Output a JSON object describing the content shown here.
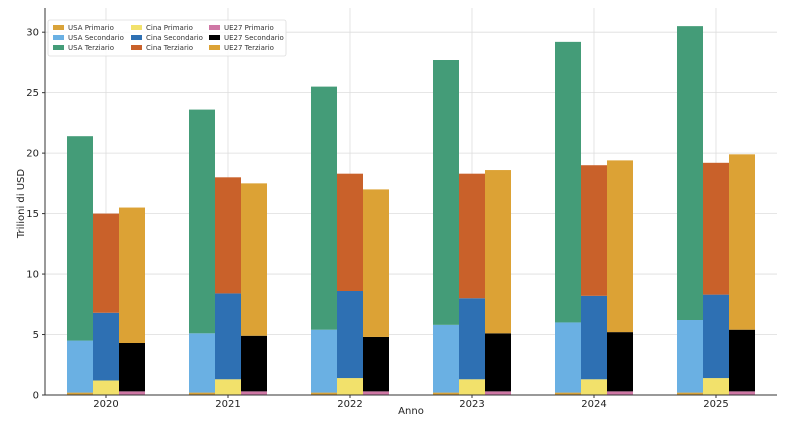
{
  "chart_data": {
    "type": "bar",
    "stacked": true,
    "grouped": true,
    "title": "",
    "xlabel": "Anno",
    "ylabel": "Trilioni di USD",
    "ylim": [
      0,
      32
    ],
    "yticks": [
      0,
      5,
      10,
      15,
      20,
      25,
      30
    ],
    "grid": true,
    "legend_position": "top-left",
    "categories": [
      "2020",
      "2021",
      "2022",
      "2023",
      "2024",
      "2025"
    ],
    "groups": [
      {
        "name": "USA",
        "series": [
          {
            "name": "USA Primario",
            "color": "#d9a33a",
            "values": [
              0.2,
              0.2,
              0.2,
              0.2,
              0.2,
              0.2
            ]
          },
          {
            "name": "USA Secondario",
            "color": "#6ab0e3",
            "values": [
              4.3,
              4.9,
              5.2,
              5.6,
              5.8,
              6.0
            ]
          },
          {
            "name": "USA Terziario",
            "color": "#449c78",
            "values": [
              16.9,
              18.5,
              20.1,
              21.9,
              23.2,
              24.3
            ]
          }
        ]
      },
      {
        "name": "Cina",
        "series": [
          {
            "name": "Cina Primario",
            "color": "#f2e16b",
            "values": [
              1.2,
              1.3,
              1.4,
              1.3,
              1.3,
              1.4
            ]
          },
          {
            "name": "Cina Secondario",
            "color": "#2e70b3",
            "values": [
              5.6,
              7.1,
              7.2,
              6.7,
              6.9,
              6.9
            ]
          },
          {
            "name": "Cina Terziario",
            "color": "#c9612a",
            "values": [
              8.2,
              9.6,
              9.7,
              10.3,
              10.8,
              10.9
            ]
          }
        ]
      },
      {
        "name": "UE27",
        "series": [
          {
            "name": "UE27 Primario",
            "color": "#cf77a5",
            "values": [
              0.3,
              0.3,
              0.3,
              0.3,
              0.3,
              0.3
            ]
          },
          {
            "name": "UE27 Secondario",
            "color": "#000000",
            "values": [
              4.0,
              4.6,
              4.5,
              4.8,
              4.9,
              5.1
            ]
          },
          {
            "name": "UE27 Terziario",
            "color": "#dca235",
            "values": [
              11.2,
              12.6,
              12.2,
              13.5,
              14.2,
              14.5
            ]
          }
        ]
      }
    ],
    "legend": [
      [
        "USA Primario",
        "Cina Primario",
        "UE27 Primario"
      ],
      [
        "USA Secondario",
        "Cina Secondario",
        "UE27 Secondario"
      ],
      [
        "USA Terziario",
        "Cina Terziario",
        "UE27 Terziario"
      ]
    ]
  }
}
